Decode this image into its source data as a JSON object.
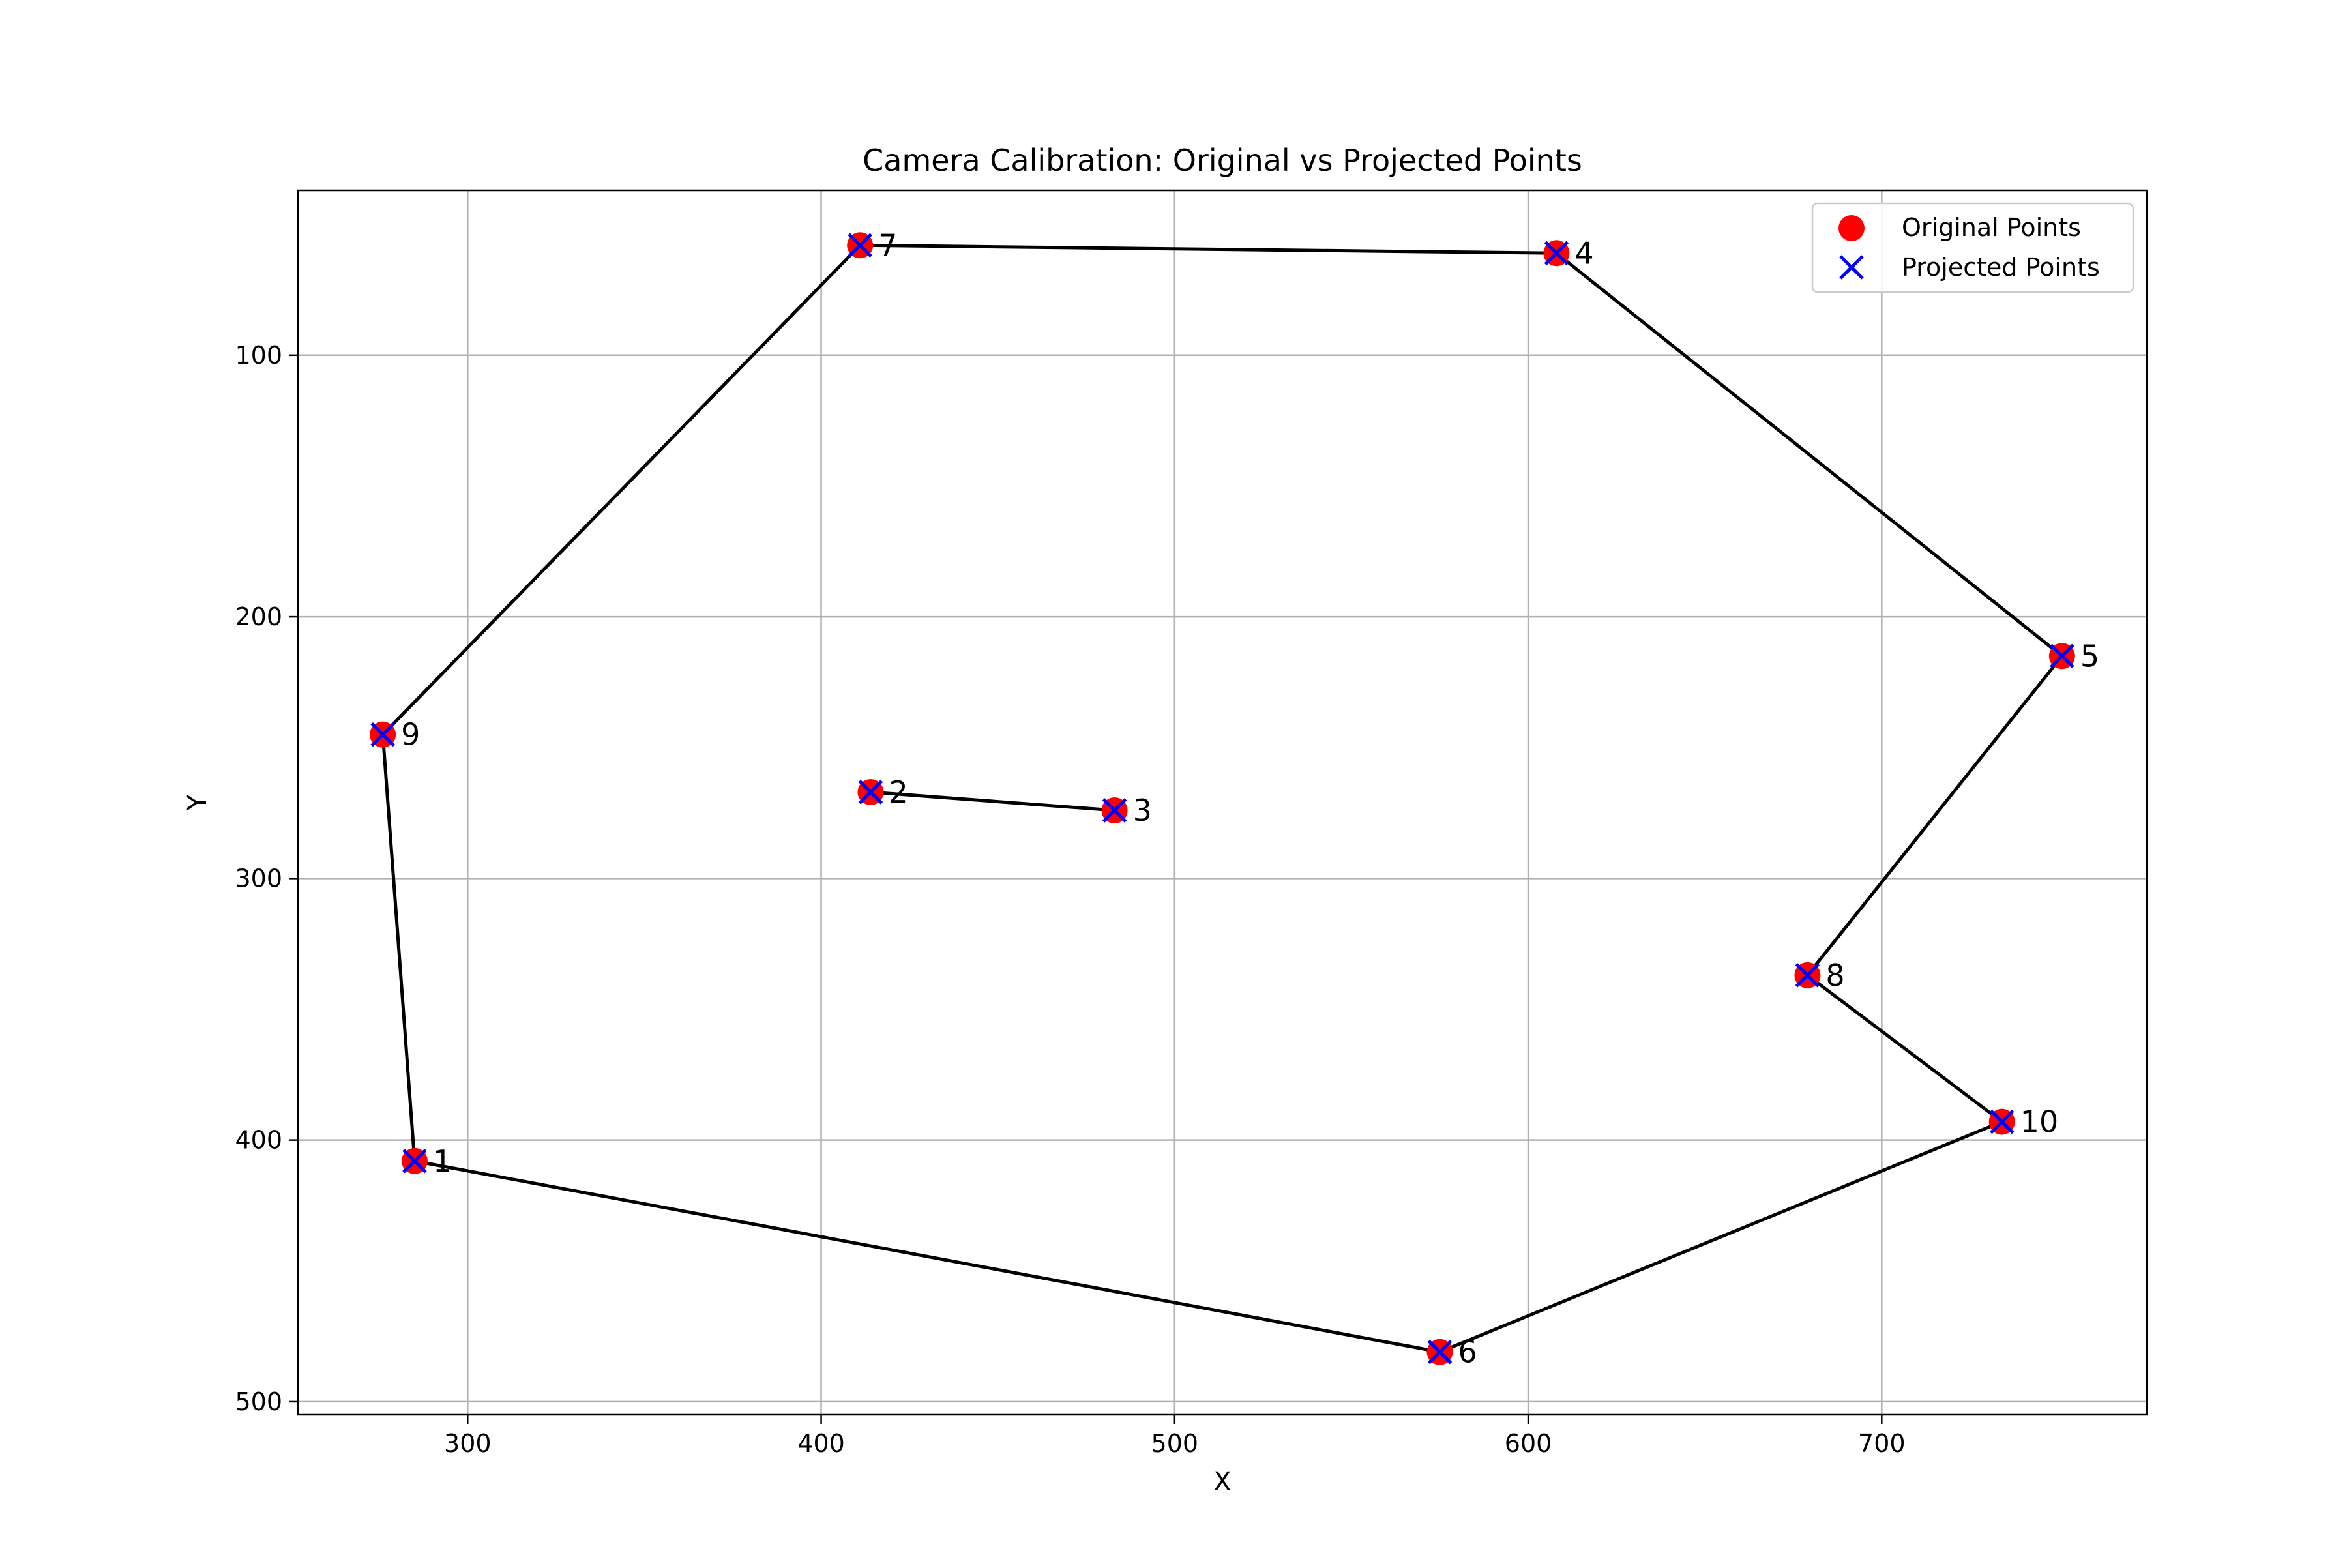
{
  "chart_data": {
    "type": "scatter",
    "title": "Camera Calibration: Original vs Projected Points",
    "xlabel": "X",
    "ylabel": "Y",
    "xlim": [
      252,
      775
    ],
    "ylim": [
      505,
      37
    ],
    "y_inverted": true,
    "grid": true,
    "legend_position": "top-right",
    "x_ticks": [
      300,
      400,
      500,
      600,
      700
    ],
    "y_ticks": [
      100,
      200,
      300,
      400,
      500
    ],
    "x_tick_labels": [
      "300",
      "400",
      "500",
      "600",
      "700"
    ],
    "y_tick_labels": [
      "100",
      "200",
      "300",
      "400",
      "500"
    ],
    "series": [
      {
        "name": "Original Points",
        "marker": "circle",
        "color": "#ff0000",
        "points": [
          {
            "label": "1",
            "x": 285,
            "y": 408
          },
          {
            "label": "2",
            "x": 414,
            "y": 267
          },
          {
            "label": "3",
            "x": 483,
            "y": 274
          },
          {
            "label": "4",
            "x": 608,
            "y": 61
          },
          {
            "label": "5",
            "x": 751,
            "y": 215
          },
          {
            "label": "6",
            "x": 575,
            "y": 481
          },
          {
            "label": "7",
            "x": 411,
            "y": 58
          },
          {
            "label": "8",
            "x": 679,
            "y": 337
          },
          {
            "label": "9",
            "x": 276,
            "y": 245
          },
          {
            "label": "10",
            "x": 734,
            "y": 393
          }
        ]
      },
      {
        "name": "Projected Points",
        "marker": "x",
        "color": "#0000ff",
        "points": [
          {
            "label": "1",
            "x": 285,
            "y": 408
          },
          {
            "label": "2",
            "x": 414,
            "y": 267
          },
          {
            "label": "3",
            "x": 483,
            "y": 274
          },
          {
            "label": "4",
            "x": 608,
            "y": 61
          },
          {
            "label": "5",
            "x": 751,
            "y": 215
          },
          {
            "label": "6",
            "x": 575,
            "y": 481
          },
          {
            "label": "7",
            "x": 411,
            "y": 58
          },
          {
            "label": "8",
            "x": 679,
            "y": 337
          },
          {
            "label": "9",
            "x": 276,
            "y": 245
          },
          {
            "label": "10",
            "x": 734,
            "y": 393
          }
        ]
      }
    ],
    "connections": [
      [
        "9",
        "1"
      ],
      [
        "1",
        "6"
      ],
      [
        "6",
        "10"
      ],
      [
        "10",
        "8"
      ],
      [
        "8",
        "5"
      ],
      [
        "5",
        "4"
      ],
      [
        "4",
        "7"
      ],
      [
        "7",
        "9"
      ],
      [
        "2",
        "3"
      ]
    ],
    "connection_color": "#000000"
  }
}
